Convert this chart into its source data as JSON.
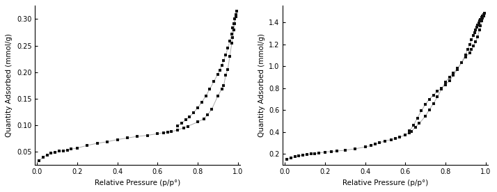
{
  "left": {
    "adsorption_x": [
      0.01,
      0.03,
      0.05,
      0.07,
      0.09,
      0.11,
      0.13,
      0.15,
      0.17,
      0.2,
      0.25,
      0.3,
      0.35,
      0.4,
      0.45,
      0.5,
      0.55,
      0.6,
      0.63,
      0.65,
      0.67,
      0.7,
      0.73,
      0.75,
      0.8,
      0.83,
      0.85,
      0.87,
      0.9,
      0.92,
      0.93,
      0.94,
      0.95,
      0.96,
      0.97,
      0.975,
      0.98,
      0.985,
      0.99,
      0.995
    ],
    "adsorption_y": [
      0.033,
      0.04,
      0.044,
      0.047,
      0.049,
      0.051,
      0.052,
      0.053,
      0.055,
      0.057,
      0.062,
      0.066,
      0.069,
      0.073,
      0.076,
      0.079,
      0.081,
      0.084,
      0.086,
      0.087,
      0.088,
      0.091,
      0.095,
      0.098,
      0.106,
      0.112,
      0.12,
      0.13,
      0.155,
      0.168,
      0.175,
      0.195,
      0.205,
      0.23,
      0.255,
      0.265,
      0.28,
      0.292,
      0.305,
      0.315
    ],
    "desorption_x": [
      0.995,
      0.99,
      0.985,
      0.98,
      0.975,
      0.97,
      0.96,
      0.95,
      0.94,
      0.93,
      0.92,
      0.91,
      0.9,
      0.88,
      0.86,
      0.84,
      0.82,
      0.8,
      0.78,
      0.76,
      0.74,
      0.72,
      0.7
    ],
    "desorption_y": [
      0.315,
      0.308,
      0.3,
      0.292,
      0.283,
      0.272,
      0.258,
      0.245,
      0.233,
      0.222,
      0.213,
      0.204,
      0.196,
      0.182,
      0.168,
      0.155,
      0.143,
      0.133,
      0.124,
      0.116,
      0.11,
      0.104,
      0.099
    ],
    "ylabel": "Quantity Adsorbed (mmol/g)",
    "xlabel": "Relative Pressure (p/p°)",
    "ylim": [
      0.025,
      0.325
    ],
    "xlim": [
      -0.01,
      1.01
    ],
    "yticks": [
      0.05,
      0.1,
      0.15,
      0.2,
      0.25,
      0.3
    ],
    "xticks": [
      0.0,
      0.2,
      0.4,
      0.6,
      0.8,
      1.0
    ]
  },
  "right": {
    "adsorption_x": [
      0.01,
      0.03,
      0.05,
      0.07,
      0.09,
      0.11,
      0.13,
      0.15,
      0.17,
      0.2,
      0.23,
      0.26,
      0.3,
      0.35,
      0.4,
      0.43,
      0.45,
      0.47,
      0.5,
      0.53,
      0.55,
      0.57,
      0.6,
      0.62,
      0.63,
      0.65,
      0.67,
      0.7,
      0.72,
      0.74,
      0.76,
      0.78,
      0.8,
      0.82,
      0.84,
      0.86,
      0.88,
      0.9,
      0.92,
      0.93,
      0.94,
      0.95,
      0.96,
      0.97,
      0.975,
      0.98,
      0.985,
      0.99,
      0.995
    ],
    "adsorption_y": [
      0.15,
      0.165,
      0.175,
      0.183,
      0.19,
      0.195,
      0.2,
      0.205,
      0.21,
      0.218,
      0.224,
      0.228,
      0.235,
      0.248,
      0.265,
      0.278,
      0.29,
      0.302,
      0.32,
      0.332,
      0.34,
      0.352,
      0.375,
      0.395,
      0.405,
      0.445,
      0.48,
      0.545,
      0.605,
      0.66,
      0.72,
      0.79,
      0.855,
      0.9,
      0.94,
      0.98,
      1.03,
      1.085,
      1.12,
      1.15,
      1.185,
      1.22,
      1.27,
      1.33,
      1.37,
      1.41,
      1.44,
      1.46,
      1.48
    ],
    "desorption_x": [
      0.995,
      0.99,
      0.985,
      0.98,
      0.975,
      0.97,
      0.965,
      0.96,
      0.955,
      0.95,
      0.945,
      0.94,
      0.93,
      0.92,
      0.91,
      0.9,
      0.88,
      0.86,
      0.84,
      0.82,
      0.8,
      0.78,
      0.76,
      0.74,
      0.72,
      0.7,
      0.68,
      0.66,
      0.64,
      0.62
    ],
    "desorption_y": [
      1.48,
      1.468,
      1.455,
      1.442,
      1.428,
      1.413,
      1.395,
      1.375,
      1.355,
      1.332,
      1.308,
      1.28,
      1.24,
      1.195,
      1.15,
      1.105,
      1.035,
      0.972,
      0.918,
      0.87,
      0.832,
      0.8,
      0.77,
      0.738,
      0.7,
      0.652,
      0.595,
      0.528,
      0.46,
      0.41
    ],
    "ylabel": "Quantity Adsorbed (mmol/g)",
    "xlabel": "Relative Pressure (p/p°)",
    "ylim": [
      0.1,
      1.55
    ],
    "xlim": [
      -0.01,
      1.01
    ],
    "yticks": [
      0.2,
      0.4,
      0.6,
      0.8,
      1.0,
      1.2,
      1.4
    ],
    "xticks": [
      0.0,
      0.2,
      0.4,
      0.6,
      0.8,
      1.0
    ]
  },
  "marker": "s",
  "marker_color": "#111111",
  "marker_size": 3,
  "line_color": "#aaaaaa",
  "line_style": "-",
  "line_width": 0.7,
  "figsize": [
    7.14,
    2.76
  ],
  "dpi": 100
}
